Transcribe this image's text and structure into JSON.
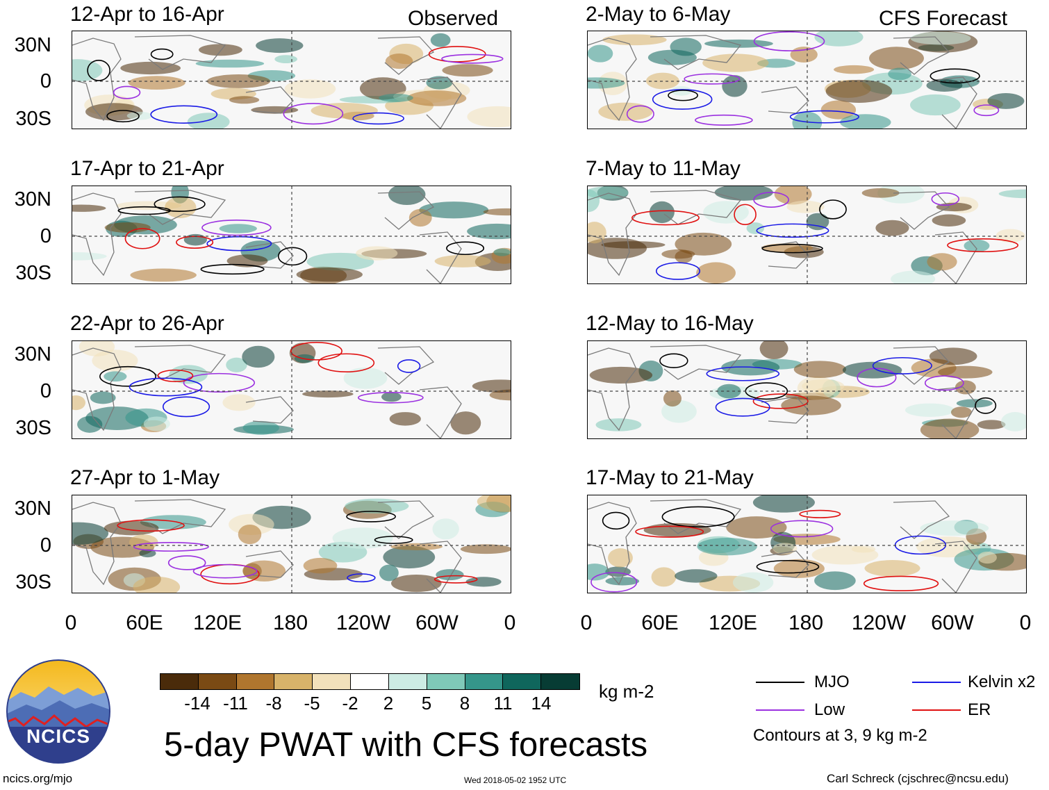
{
  "left_column": {
    "tag": "Observed",
    "panels": [
      {
        "title": "12-Apr to 16-Apr"
      },
      {
        "title": "17-Apr to 21-Apr"
      },
      {
        "title": "22-Apr to 26-Apr"
      },
      {
        "title": "27-Apr to 1-May"
      }
    ]
  },
  "right_column": {
    "tag": "CFS Forecast",
    "panels": [
      {
        "title": "2-May to 6-May"
      },
      {
        "title": "7-May to 11-May"
      },
      {
        "title": "12-May to 16-May"
      },
      {
        "title": "17-May to 21-May"
      }
    ]
  },
  "axes": {
    "lat_labels": [
      "30N",
      "0",
      "30S"
    ],
    "lon_labels": [
      "0",
      "60E",
      "120E",
      "180",
      "120W",
      "60W",
      "0"
    ]
  },
  "colorbar": {
    "ticks": [
      "-14",
      "-11",
      "-8",
      "-5",
      "-2",
      "2",
      "5",
      "8",
      "11",
      "14"
    ],
    "colors": [
      "#4a2b0a",
      "#7a4a14",
      "#b0762e",
      "#d8b36a",
      "#f2e1bb",
      "#ffffff",
      "#cdece4",
      "#7fc9b8",
      "#35968a",
      "#0f665c",
      "#073c34"
    ],
    "units": "kg m-2"
  },
  "legend": {
    "items": [
      {
        "label": "MJO",
        "color": "#000000"
      },
      {
        "label": "Kelvin x2",
        "color": "#1a1ae6"
      },
      {
        "label": "Low",
        "color": "#9b30e0"
      },
      {
        "label": "ER",
        "color": "#e01010"
      }
    ],
    "note": "Contours at 3, 9 kg m-2"
  },
  "title": "5-day PWAT with CFS forecasts",
  "logo_text": "NCICS",
  "footer": {
    "url": "ncics.org/mjo",
    "timestamp": "Wed 2018-05-02 1952 UTC",
    "credit": "Carl Schreck (cjschrec@ncsu.edu)"
  }
}
